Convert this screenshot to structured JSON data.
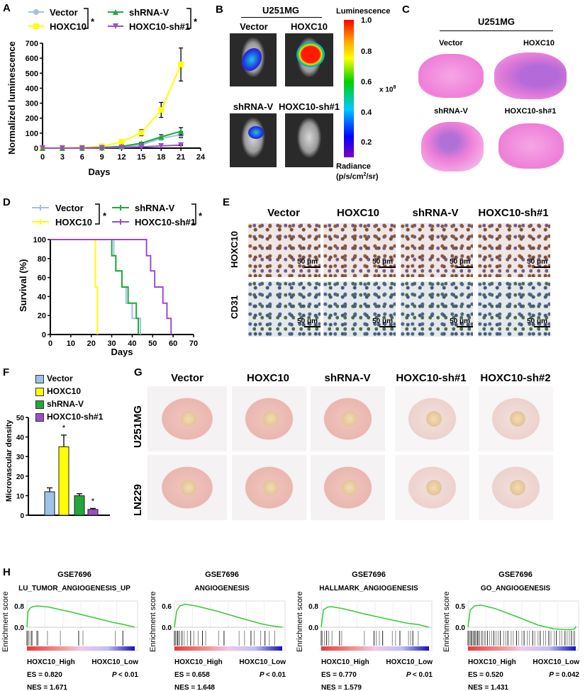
{
  "panels": {
    "A": "A",
    "B": "B",
    "C": "C",
    "D": "D",
    "E": "E",
    "F": "F",
    "G": "G",
    "H": "H"
  },
  "colors": {
    "Vector": "#9dc3e6",
    "HOXC10": "#ffff00",
    "shRNA-V": "#22a83a",
    "HOXC10-sh#1": "#9b4dca"
  },
  "groups": [
    "Vector",
    "HOXC10",
    "shRNA-V",
    "HOXC10-sh#1"
  ],
  "significance": "*",
  "panel_b": {
    "cell_line": "U251MG",
    "labels": [
      "Vector",
      "HOXC10",
      "shRNA-V",
      "HOXC10-sh#1"
    ],
    "colorbar_title": "Luminescence",
    "colorbar_ticks": [
      "1.0",
      "0.8",
      "0.6",
      "0.4",
      "0.2"
    ],
    "colorbar_multiplier": "x 10",
    "colorbar_exponent": "8",
    "radiance_label": "Radiance",
    "radiance_unit_a": "(p/s/cm",
    "radiance_unit_b": "2",
    "radiance_unit_c": "/sr)"
  },
  "panel_c": {
    "cell_line": "U251MG",
    "labels": [
      "Vector",
      "HOXC10",
      "shRNA-V",
      "HOXC10-sh#1"
    ]
  },
  "panel_e": {
    "columns": [
      "Vector",
      "HOXC10",
      "shRNA-V",
      "HOXC10-sh#1"
    ],
    "rows": [
      "HOXC10",
      "CD31"
    ],
    "scale_bar": "50 μm"
  },
  "panel_g": {
    "columns": [
      "Vector",
      "HOXC10",
      "shRNA-V",
      "HOXC10-sh#1",
      "HOXC10-sh#2"
    ],
    "rows": [
      "U251MG",
      "LN229"
    ]
  },
  "chart_data": [
    {
      "panel": "A",
      "type": "line",
      "xlabel": "Days",
      "ylabel": "Normalized luminescence",
      "xlim": [
        0,
        24
      ],
      "ylim": [
        0,
        700
      ],
      "xticks": [
        0,
        3,
        6,
        9,
        12,
        15,
        18,
        21,
        24
      ],
      "yticks": [
        0,
        100,
        200,
        300,
        400,
        500,
        600,
        700
      ],
      "x": [
        0,
        3,
        6,
        9,
        12,
        15,
        18,
        21
      ],
      "series": [
        {
          "name": "Vector",
          "marker": "circle",
          "values": [
            0,
            0,
            1,
            3,
            8,
            22,
            65,
            90
          ],
          "errors": [
            0,
            0,
            0,
            1,
            2,
            5,
            10,
            20
          ]
        },
        {
          "name": "HOXC10",
          "marker": "square",
          "values": [
            0,
            1,
            3,
            12,
            42,
            103,
            255,
            558
          ],
          "errors": [
            0,
            0,
            1,
            3,
            6,
            20,
            50,
            110
          ]
        },
        {
          "name": "shRNA-V",
          "marker": "triangle",
          "values": [
            0,
            0,
            1,
            4,
            12,
            33,
            75,
            112
          ],
          "errors": [
            0,
            0,
            0,
            1,
            2,
            5,
            15,
            25
          ]
        },
        {
          "name": "HOXC10-sh#1",
          "marker": "inverted-triangle",
          "values": [
            0,
            0,
            0,
            2,
            5,
            8,
            15,
            20
          ],
          "errors": [
            0,
            0,
            0,
            0,
            1,
            1,
            2,
            3
          ]
        }
      ],
      "legend": "top"
    },
    {
      "panel": "D",
      "type": "line",
      "step": true,
      "xlabel": "Days",
      "ylabel": "Survival (%)",
      "xlim": [
        0,
        70
      ],
      "ylim": [
        0,
        100
      ],
      "xticks": [
        0,
        10,
        20,
        30,
        40,
        50,
        60,
        70
      ],
      "yticks": [
        0,
        20,
        40,
        60,
        80,
        100
      ],
      "series": [
        {
          "name": "Vector",
          "points": [
            [
              0,
              100
            ],
            [
              31,
              100
            ],
            [
              31,
              83
            ],
            [
              32,
              83
            ],
            [
              32,
              67
            ],
            [
              35,
              67
            ],
            [
              35,
              50
            ],
            [
              37,
              50
            ],
            [
              37,
              33
            ],
            [
              40,
              33
            ],
            [
              40,
              17
            ],
            [
              44,
              17
            ],
            [
              44,
              0
            ]
          ]
        },
        {
          "name": "HOXC10",
          "points": [
            [
              0,
              100
            ],
            [
              22,
              100
            ],
            [
              22,
              50
            ],
            [
              23,
              50
            ],
            [
              23,
              0
            ]
          ]
        },
        {
          "name": "shRNA-V",
          "points": [
            [
              0,
              100
            ],
            [
              30,
              100
            ],
            [
              30,
              83
            ],
            [
              32,
              83
            ],
            [
              32,
              67
            ],
            [
              35,
              67
            ],
            [
              35,
              50
            ],
            [
              38,
              50
            ],
            [
              38,
              33
            ],
            [
              42,
              33
            ],
            [
              42,
              17
            ],
            [
              43,
              17
            ],
            [
              43,
              0
            ]
          ]
        },
        {
          "name": "HOXC10-sh#1",
          "points": [
            [
              0,
              100
            ],
            [
              47,
              100
            ],
            [
              47,
              83
            ],
            [
              49,
              83
            ],
            [
              49,
              67
            ],
            [
              51,
              67
            ],
            [
              51,
              50
            ],
            [
              55,
              50
            ],
            [
              55,
              33
            ],
            [
              57,
              33
            ],
            [
              57,
              17
            ],
            [
              59,
              17
            ],
            [
              59,
              0
            ]
          ]
        }
      ],
      "legend": "top"
    },
    {
      "panel": "F",
      "type": "bar",
      "ylabel": "Microvascular density",
      "ylim": [
        0,
        50
      ],
      "yticks": [
        0,
        10,
        20,
        30,
        40,
        50
      ],
      "categories": [
        "Vector",
        "HOXC10",
        "shRNA-V",
        "HOXC10-sh#1"
      ],
      "values": [
        12,
        35,
        10,
        3
      ],
      "errors": [
        2,
        6,
        1,
        0.5
      ],
      "annotations": [
        "",
        "*",
        "",
        "*"
      ],
      "legend": "top-left"
    },
    {
      "panel": "H",
      "type": "line",
      "plots": [
        {
          "dataset": "GSE7696",
          "gene_set": "LU_TUMOR_ANGIOGENESIS_UP",
          "ylabel": "Enrichment score",
          "yticks": [
            "0.8",
            "0.0"
          ],
          "ytop": 0.8,
          "curve": [
            [
              0,
              0
            ],
            [
              0.01,
              0.6
            ],
            [
              0.03,
              0.72
            ],
            [
              0.06,
              0.78
            ],
            [
              0.1,
              0.8
            ],
            [
              0.2,
              0.76
            ],
            [
              0.4,
              0.58
            ],
            [
              0.6,
              0.38
            ],
            [
              0.8,
              0.18
            ],
            [
              0.9,
              0.1
            ],
            [
              1,
              0
            ]
          ],
          "hits": [
            0.0,
            0.01,
            0.02,
            0.04,
            0.05,
            0.09,
            0.1,
            0.19,
            0.31,
            0.48,
            0.52,
            0.82,
            0.89
          ],
          "left_label": "HOXC10_High",
          "right_label": "HOXC10_Low",
          "es": "ES = 0.820",
          "p": "< 0.01",
          "nes": "NES = 1.671"
        },
        {
          "dataset": "GSE7696",
          "gene_set": "ANGIOGENESIS",
          "ylabel": "Enrichment score",
          "yticks": [
            "0.6",
            "0.0"
          ],
          "ytop": 0.6,
          "curve": [
            [
              0,
              0
            ],
            [
              0.02,
              0.45
            ],
            [
              0.05,
              0.6
            ],
            [
              0.1,
              0.65
            ],
            [
              0.2,
              0.6
            ],
            [
              0.4,
              0.45
            ],
            [
              0.6,
              0.27
            ],
            [
              0.8,
              0.1
            ],
            [
              0.9,
              0.04
            ],
            [
              1,
              0
            ]
          ],
          "hits": [
            0.0,
            0.01,
            0.02,
            0.03,
            0.04,
            0.05,
            0.07,
            0.09,
            0.12,
            0.15,
            0.18,
            0.22,
            0.26,
            0.29,
            0.41,
            0.46,
            0.6,
            0.65,
            0.71,
            0.74,
            0.8,
            0.84,
            0.88,
            0.93
          ],
          "left_label": "HOXC10_High",
          "right_label": "HOXC10_Low",
          "es": "ES = 0.658",
          "p": "< 0.01",
          "nes": "NES = 1.648"
        },
        {
          "dataset": "GSE7696",
          "gene_set": "HALLMARK_ANGIOGENESIS",
          "ylabel": "Enrichment score",
          "yticks": [
            "0.8",
            "0.0"
          ],
          "ytop": 0.8,
          "curve": [
            [
              0,
              0
            ],
            [
              0.02,
              0.65
            ],
            [
              0.06,
              0.76
            ],
            [
              0.1,
              0.77
            ],
            [
              0.2,
              0.7
            ],
            [
              0.4,
              0.5
            ],
            [
              0.6,
              0.32
            ],
            [
              0.8,
              0.15
            ],
            [
              0.9,
              0.1
            ],
            [
              1,
              0
            ]
          ],
          "hits": [
            0.0,
            0.01,
            0.03,
            0.05,
            0.07,
            0.1,
            0.17,
            0.19,
            0.4,
            0.49,
            0.51,
            0.54,
            0.57,
            0.66,
            0.69,
            0.73,
            0.81,
            0.83,
            0.85,
            0.9
          ],
          "left_label": "HOXC10_High",
          "right_label": "HOXC10_Low",
          "es": "ES = 0.770",
          "p": "< 0.01",
          "nes": "NES = 1.579"
        },
        {
          "dataset": "GSE7696",
          "gene_set": "GO_ANGIOGENESIS",
          "ylabel": "Enrichment score",
          "yticks": [
            "0.5",
            "0.0"
          ],
          "ytop": 0.5,
          "curve": [
            [
              0,
              0
            ],
            [
              0.02,
              0.4
            ],
            [
              0.06,
              0.5
            ],
            [
              0.12,
              0.52
            ],
            [
              0.25,
              0.44
            ],
            [
              0.45,
              0.25
            ],
            [
              0.65,
              0.05
            ],
            [
              0.8,
              -0.04
            ],
            [
              0.95,
              -0.06
            ],
            [
              0.99,
              -0.04
            ],
            [
              1,
              0.02
            ]
          ],
          "hits": [
            0.0,
            0.01,
            0.02,
            0.03,
            0.04,
            0.05,
            0.06,
            0.07,
            0.08,
            0.09,
            0.1,
            0.11,
            0.13,
            0.15,
            0.16,
            0.18,
            0.2,
            0.22,
            0.24,
            0.26,
            0.28,
            0.3,
            0.33,
            0.35,
            0.37,
            0.4,
            0.42,
            0.45,
            0.47,
            0.5,
            0.52,
            0.55,
            0.57,
            0.6,
            0.62,
            0.65,
            0.67,
            0.7,
            0.72,
            0.75,
            0.77,
            0.8,
            0.82,
            0.85,
            0.87,
            0.9,
            0.92,
            0.94,
            0.96,
            0.98,
            0.99
          ],
          "left_label": "HOXC10_High",
          "right_label": "HOXC10_Low",
          "es": "ES = 0.520",
          "p": "= 0.042",
          "nes": "NES = 1.431"
        }
      ]
    }
  ]
}
